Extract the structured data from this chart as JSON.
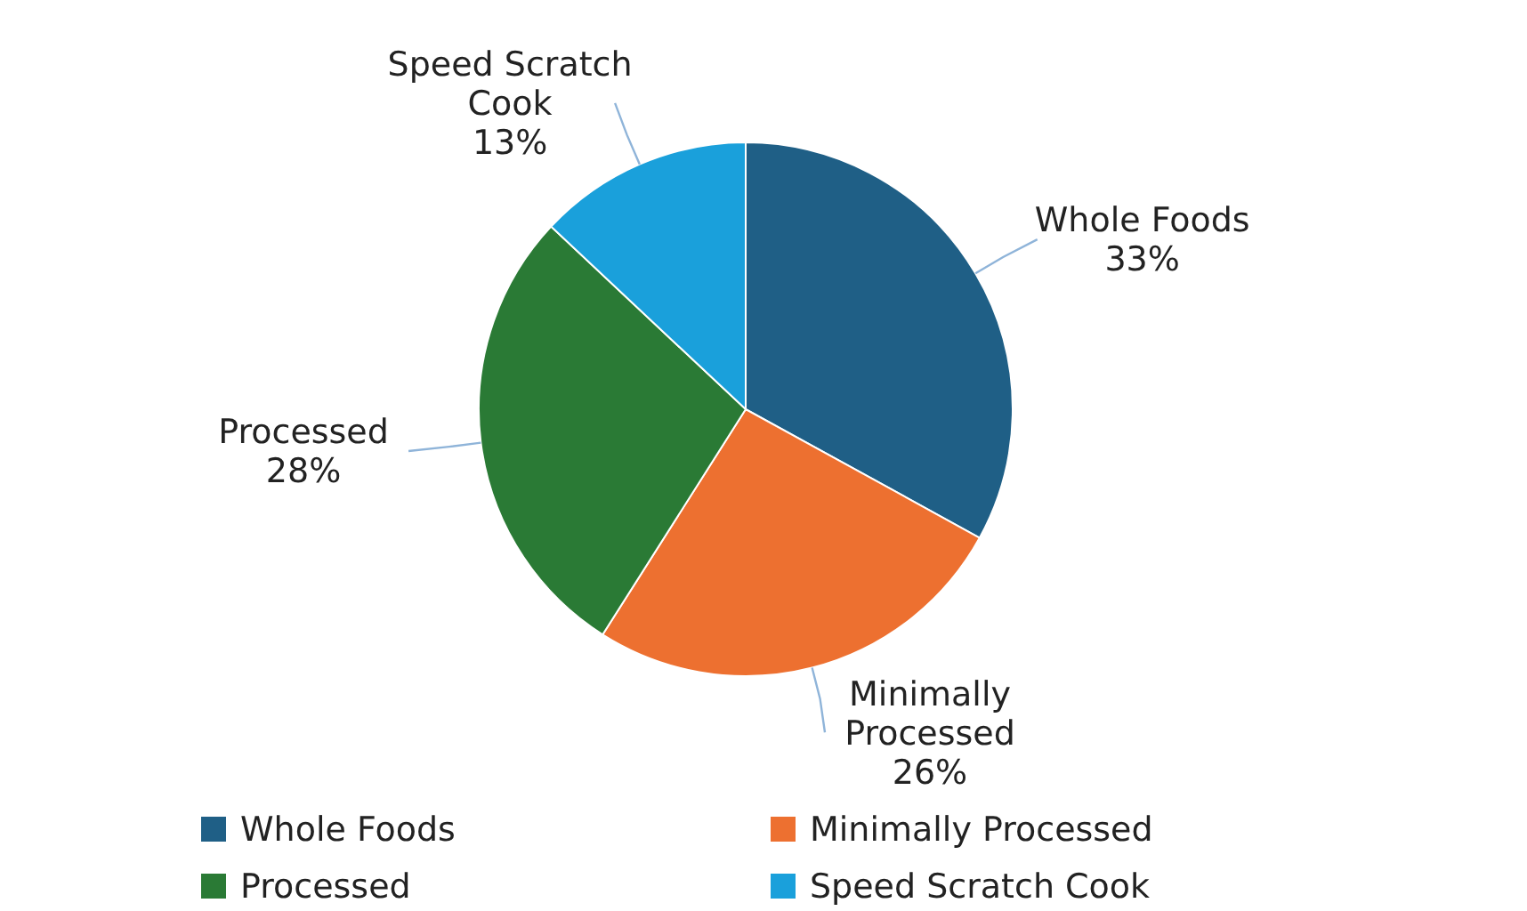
{
  "chart_data": {
    "type": "pie",
    "categories": [
      "Whole Foods",
      "Minimally Processed",
      "Processed",
      "Speed Scratch Cook"
    ],
    "values": [
      33,
      26,
      28,
      13
    ],
    "colors": [
      "#1f5f86",
      "#ed7030",
      "#2a7a35",
      "#1aa0db"
    ],
    "value_labels": [
      "33%",
      "26%",
      "28%",
      "13%"
    ],
    "legend": "bottom"
  }
}
